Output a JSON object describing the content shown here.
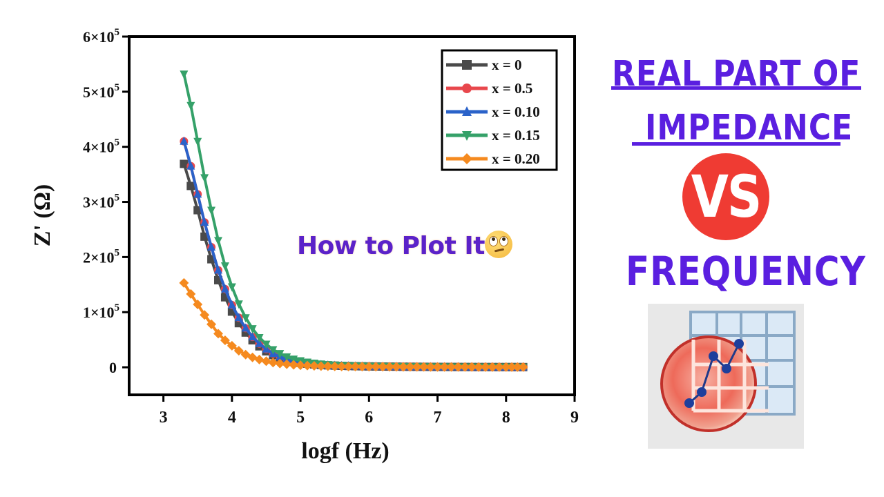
{
  "chart_data": {
    "type": "line",
    "title": "",
    "xlabel": "logf (Hz)",
    "ylabel": "Z' (Ω)",
    "xlim": [
      2.5,
      9
    ],
    "ylim": [
      -50000,
      600000
    ],
    "xticks": [
      3,
      4,
      5,
      6,
      7,
      8,
      9
    ],
    "xtick_labels": [
      "3",
      "4",
      "5",
      "6",
      "7",
      "8",
      "9"
    ],
    "yticks": [
      0,
      100000,
      200000,
      300000,
      400000,
      500000,
      600000
    ],
    "ytick_labels": [
      {
        "base": "0",
        "exp": ""
      },
      {
        "base": "1×10",
        "exp": "5"
      },
      {
        "base": "2×10",
        "exp": "5"
      },
      {
        "base": "3×10",
        "exp": "5"
      },
      {
        "base": "4×10",
        "exp": "5"
      },
      {
        "base": "5×10",
        "exp": "5"
      },
      {
        "base": "6×10",
        "exp": "5"
      }
    ],
    "grid": false,
    "legend_position": "upper right",
    "x": [
      3.3,
      3.4,
      3.5,
      3.6,
      3.7,
      3.8,
      3.9,
      4.0,
      4.1,
      4.2,
      4.3,
      4.4,
      4.5,
      4.6,
      4.7,
      4.8,
      4.9,
      5.0,
      5.1,
      5.2,
      5.3,
      5.4,
      5.5,
      5.6,
      5.7,
      5.8,
      5.9,
      6.0,
      6.5,
      7.0,
      7.5,
      8.0,
      8.25
    ],
    "series": [
      {
        "name": "x = 0",
        "color": "#4a4a4a",
        "marker": "square",
        "values": [
          369000,
          329000,
          285000,
          237000,
          196000,
          158000,
          127000,
          101000,
          80000,
          63000,
          49000,
          38000,
          29000,
          22000,
          17000,
          13000,
          10000,
          8000,
          6500,
          5200,
          4200,
          3500,
          3000,
          2600,
          2300,
          2000,
          1800,
          1600,
          1000,
          700,
          500,
          400,
          350
        ]
      },
      {
        "name": "x = 0.5",
        "color": "#e8474c",
        "marker": "circle",
        "values": [
          410000,
          365000,
          314000,
          263000,
          218000,
          176000,
          142000,
          113000,
          90000,
          71000,
          55000,
          43000,
          33000,
          25000,
          19000,
          15000,
          11500,
          9000,
          7200,
          5800,
          4700,
          3900,
          3300,
          2800,
          2500,
          2200,
          2000,
          1800,
          1100,
          800,
          600,
          450,
          400
        ]
      },
      {
        "name": "x = 0.10",
        "color": "#2a62c9",
        "marker": "triangle-up",
        "values": [
          410000,
          365000,
          314000,
          263000,
          218000,
          176000,
          142000,
          113000,
          90000,
          71000,
          55000,
          43000,
          33000,
          25000,
          19000,
          15000,
          11500,
          9000,
          7200,
          5800,
          4700,
          3900,
          3300,
          2800,
          2500,
          2200,
          2000,
          1800,
          1100,
          800,
          600,
          450,
          400
        ]
      },
      {
        "name": "x = 0.15",
        "color": "#35a169",
        "marker": "triangle-down",
        "values": [
          532000,
          475000,
          410000,
          344000,
          285000,
          230000,
          184000,
          146000,
          115000,
          90000,
          70000,
          54000,
          42000,
          32000,
          25000,
          19000,
          15000,
          12000,
          9500,
          7600,
          6100,
          5000,
          4200,
          3600,
          3100,
          2700,
          2400,
          2100,
          1300,
          900,
          700,
          500,
          450
        ]
      },
      {
        "name": "x = 0.20",
        "color": "#f58a1f",
        "marker": "diamond",
        "values": [
          153000,
          133000,
          114000,
          95000,
          78000,
          61000,
          49000,
          39000,
          30000,
          23000,
          18000,
          14000,
          11000,
          8500,
          6800,
          5500,
          4500,
          3700,
          3100,
          2600,
          2200,
          1900,
          1700,
          1500,
          1400,
          1300,
          1200,
          1100,
          800,
          600,
          500,
          400,
          350
        ]
      }
    ]
  },
  "overlay": {
    "caption": "How to Plot It",
    "emoji": "face-with-rolling-eyes"
  },
  "right_panel": {
    "line1": "REAL PART OF",
    "line2": "IMPEDANCE",
    "vs": "VS",
    "line3": "FREQUENCY",
    "logo": "origin-app-icon",
    "colors": {
      "headline": "#5a1fe0",
      "vs_badge": "#ef3b33"
    }
  }
}
